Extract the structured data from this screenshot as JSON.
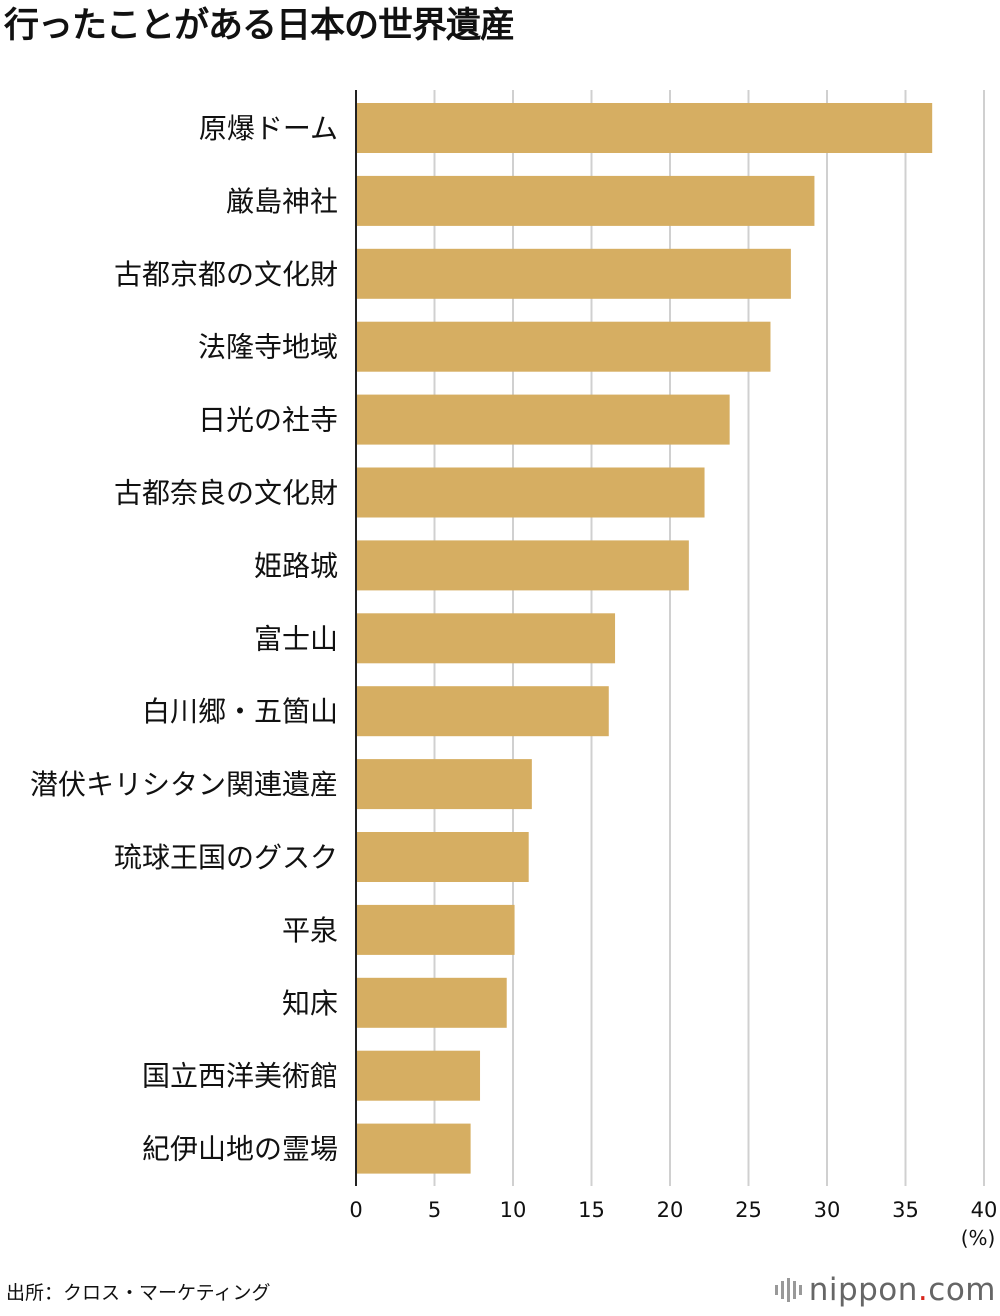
{
  "chart_data": {
    "type": "bar",
    "orientation": "horizontal",
    "title": "行ったことがある日本の世界遺産",
    "categories": [
      "原爆ドーム",
      "厳島神社",
      "古都京都の文化財",
      "法隆寺地域",
      "日光の社寺",
      "古都奈良の文化財",
      "姫路城",
      "富士山",
      "白川郷・五箇山",
      "潜伏キリシタン関連遺産",
      "琉球王国のグスク",
      "平泉",
      "知床",
      "国立西洋美術館",
      "紀伊山地の霊場"
    ],
    "values": [
      36.7,
      29.2,
      27.7,
      26.4,
      23.8,
      22.2,
      21.2,
      16.5,
      16.1,
      11.2,
      11.0,
      10.1,
      9.6,
      7.9,
      7.3
    ],
    "xlim": [
      0,
      40
    ],
    "xticks": [
      "0",
      "5",
      "10",
      "15",
      "20",
      "25",
      "30",
      "35",
      "40"
    ],
    "unit_label": "(%)",
    "bar_color": "#d6ae62",
    "grid": true
  },
  "source": "出所：クロス・マーケティング",
  "brand": {
    "name": "nippon",
    "dot": ".",
    "tld": "com",
    "icon": "nippon-logo-icon"
  }
}
